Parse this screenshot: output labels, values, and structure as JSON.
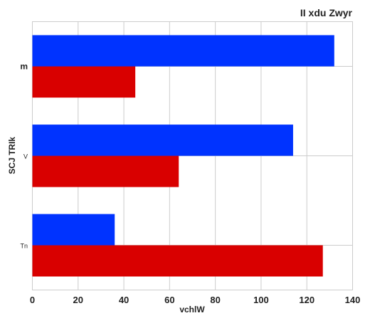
{
  "chart_data": {
    "type": "bar",
    "orientation": "horizontal",
    "title": "II xdu Zwyr",
    "xlabel": "vchlW",
    "ylabel": "SCJ TRIk",
    "categories": [
      "m",
      "V",
      "Tn"
    ],
    "series": [
      {
        "color": "#0033ff",
        "values": [
          132,
          114,
          36
        ]
      },
      {
        "color": "#d90000",
        "values": [
          45,
          64,
          127
        ]
      }
    ],
    "xlim": [
      0,
      140
    ],
    "xticks": [
      "0",
      "20",
      "40",
      "60",
      "80",
      "100",
      "120",
      "140"
    ],
    "grid": true,
    "legend": "none"
  }
}
